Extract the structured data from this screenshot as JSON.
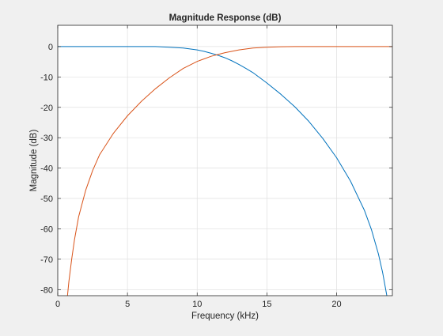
{
  "chart_data": {
    "type": "line",
    "title": "Magnitude Response (dB)",
    "xlabel": "Frequency (kHz)",
    "ylabel": "Magnitude (dB)",
    "xlim": [
      0,
      24
    ],
    "ylim": [
      -82,
      7
    ],
    "xticks": [
      "0",
      "5",
      "10",
      "15",
      "20"
    ],
    "xtick_values": [
      0,
      5,
      10,
      15,
      20
    ],
    "yticks": [
      "0",
      "-10",
      "-20",
      "-30",
      "-40",
      "-50",
      "-60",
      "-70",
      "-80"
    ],
    "ytick_values": [
      0,
      -10,
      -20,
      -30,
      -40,
      -50,
      -60,
      -70,
      -80
    ],
    "grid": true,
    "legend": "none",
    "series": [
      {
        "color": "#0072bd",
        "x": [
          0,
          2,
          4,
          6,
          7,
          8,
          9,
          10,
          10.5,
          11,
          11.5,
          12,
          12.5,
          13,
          13.5,
          14,
          15,
          16,
          17,
          18,
          19,
          20,
          21,
          22,
          22.5,
          23,
          23.3,
          23.6
        ],
        "y": [
          0,
          0,
          0,
          0,
          0,
          -0.2,
          -0.5,
          -1.1,
          -1.6,
          -2.2,
          -2.9,
          -3.7,
          -4.7,
          -5.9,
          -7.2,
          -8.6,
          -12,
          -15.7,
          -19.8,
          -24.6,
          -30.2,
          -36.6,
          -44.3,
          -54,
          -60.3,
          -68.3,
          -74.4,
          -82
        ]
      },
      {
        "color": "#d95319",
        "x": [
          0.7,
          0.8,
          1,
          1.2,
          1.5,
          2,
          2.5,
          3,
          4,
          5,
          6,
          7,
          8,
          9,
          10,
          11,
          11.5,
          12,
          13,
          14,
          15,
          16,
          17,
          18,
          20,
          24
        ],
        "y": [
          -82,
          -77.3,
          -70,
          -63.5,
          -56,
          -47.3,
          -40.8,
          -35.6,
          -28.5,
          -22.8,
          -18,
          -13.9,
          -10.3,
          -7.2,
          -4.9,
          -3.2,
          -2.6,
          -2,
          -1.1,
          -0.5,
          -0.2,
          -0.05,
          0,
          0,
          0,
          0
        ]
      }
    ]
  }
}
